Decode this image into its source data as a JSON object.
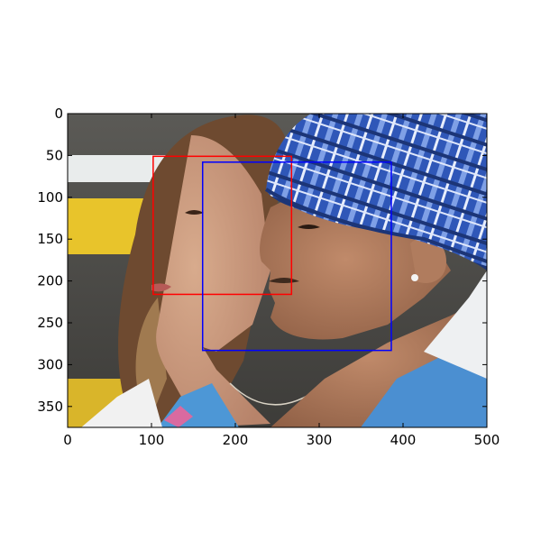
{
  "figure": {
    "type": "image-with-bounding-boxes",
    "x_range": [
      0,
      500
    ],
    "y_range": [
      0,
      375
    ],
    "x_ticks": [
      0,
      100,
      200,
      300,
      400,
      500
    ],
    "y_ticks": [
      0,
      50,
      100,
      150,
      200,
      250,
      300,
      350
    ],
    "x_tick_labels": [
      "0",
      "100",
      "200",
      "300",
      "400",
      "500"
    ],
    "y_tick_labels": [
      "0",
      "50",
      "100",
      "150",
      "200",
      "250",
      "300",
      "350"
    ],
    "boxes": [
      {
        "name": "red-box",
        "color": "#ff0000",
        "x0": 102,
        "y0": 51,
        "x1": 267,
        "y1": 216
      },
      {
        "name": "blue-box",
        "color": "#0000ff",
        "x0": 161,
        "y0": 58,
        "x1": 386,
        "y1": 283
      }
    ]
  },
  "colors": {
    "axis": "#000000",
    "cap_blue": "#2f57b8",
    "cap_light": "#7fa0e6",
    "skin_woman": "#c9987a",
    "skin_man": "#b07c5e",
    "hair": "#6e4a30",
    "background_gray": "#4f4d48",
    "background_yellow": "#e8c42b"
  }
}
